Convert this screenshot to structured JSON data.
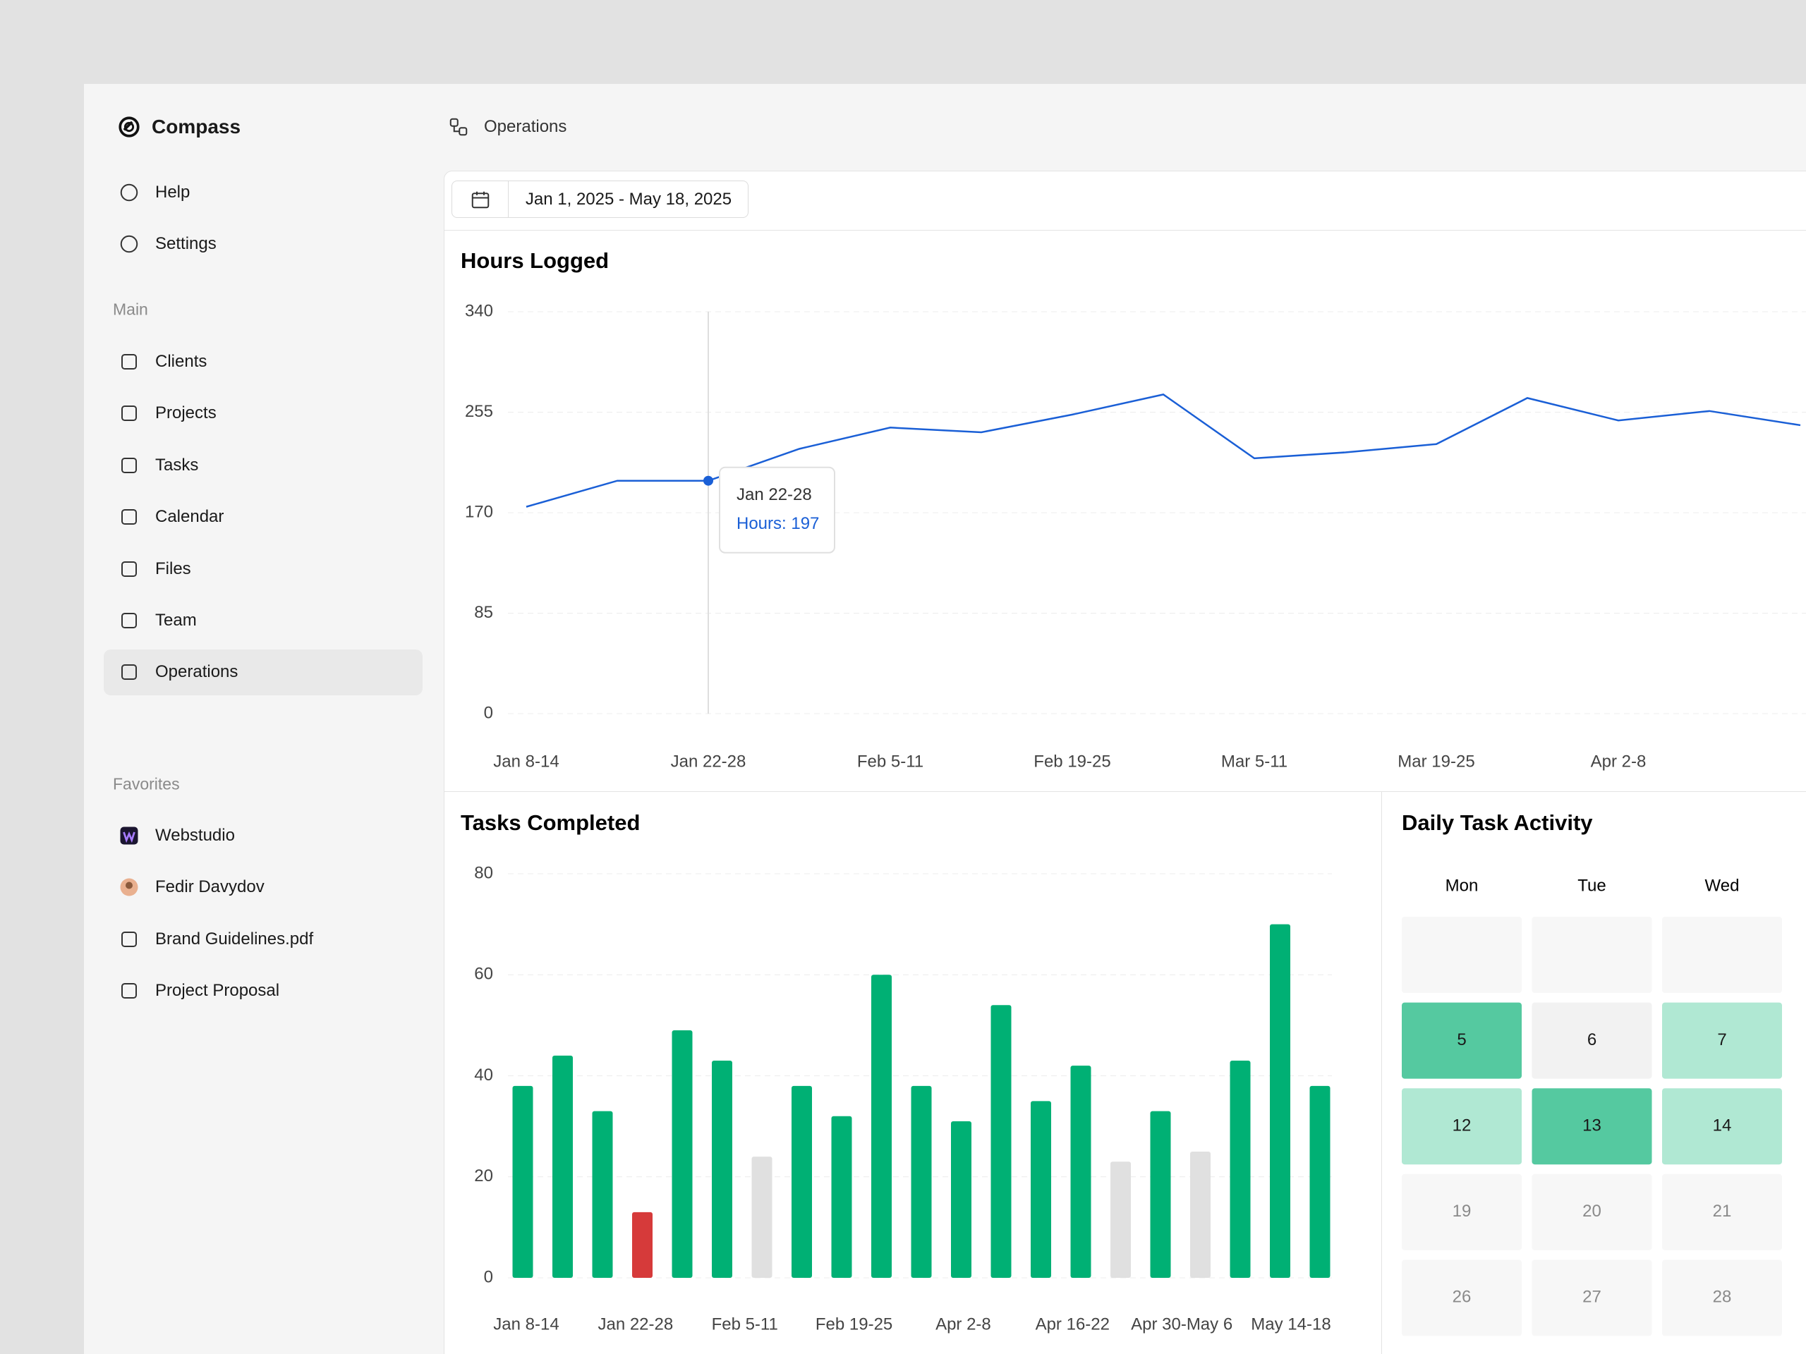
{
  "sidebar": {
    "brand": "Compass",
    "top_items": [
      "Help",
      "Settings"
    ],
    "main_label": "Main",
    "main_items": [
      "Clients",
      "Projects",
      "Tasks",
      "Calendar",
      "Files",
      "Team",
      "Operations"
    ],
    "favorites_label": "Favorites",
    "favorites": [
      "Webstudio",
      "Fedir Davydov",
      "Brand Guidelines.pdf",
      "Project Proposal"
    ]
  },
  "header": {
    "breadcrumb": "Operations",
    "date_range": "Jan 1, 2025 - May 18, 2025"
  },
  "chart_data": [
    {
      "type": "line",
      "title": "Hours Logged",
      "categories": [
        "Jan 8-14",
        null,
        "Jan 22-28",
        null,
        "Feb 5-11",
        null,
        "Feb 19-25",
        null,
        "Mar 5-11",
        null,
        "Mar 19-25",
        null,
        "Apr 2-8",
        null,
        null
      ],
      "series": [
        {
          "color": "#1a5fd6",
          "values": [
            175,
            197,
            197,
            224,
            242,
            238,
            253,
            270,
            216,
            221,
            228,
            267,
            248,
            256,
            244
          ]
        }
      ],
      "ylim": [
        0,
        340
      ],
      "yticks": [
        0,
        85,
        170,
        255,
        340
      ],
      "grid": true,
      "tooltip": {
        "title": "Jan 22-28",
        "text": "Hours: 197"
      }
    },
    {
      "type": "bar",
      "title": "Tasks Completed",
      "values": [
        38,
        44,
        33,
        13,
        49,
        43,
        24,
        38,
        32,
        60,
        38,
        31,
        54,
        35,
        42,
        23,
        33,
        25,
        43,
        70,
        38
      ],
      "colors": [
        "#00b074",
        "#00b074",
        "#00b074",
        "#d63a3a",
        "#00b074",
        "#00b074",
        "#e0e0e0",
        "#00b074",
        "#00b074",
        "#00b074",
        "#00b074",
        "#00b074",
        "#00b074",
        "#00b074",
        "#00b074",
        "#e0e0e0",
        "#00b074",
        "#e0e0e0",
        "#00b074",
        "#00b074",
        "#00b074"
      ],
      "x_labels": [
        "Jan 8-14",
        "Jan 22-28",
        "Feb 5-11",
        "Feb 19-25",
        "Apr 2-8",
        "Apr 16-22",
        "Apr 30-May 6",
        "May 14-18"
      ],
      "ylim": [
        0,
        80
      ],
      "yticks": [
        0,
        20,
        40,
        60,
        80
      ],
      "grid": true
    },
    {
      "type": "heatmap",
      "title": "Daily Task Activity",
      "columns": [
        "Mon",
        "Tue",
        "Wed"
      ],
      "rows": [
        [
          null,
          null,
          null
        ],
        [
          5,
          6,
          7
        ],
        [
          12,
          13,
          14
        ],
        [
          19,
          20,
          21
        ],
        [
          26,
          27,
          28
        ]
      ],
      "colors": [
        [
          "#f7f7f7",
          "#f7f7f7",
          "#f7f7f7"
        ],
        [
          "#55c9a0",
          "#f2f2f2",
          "#b0e8d3"
        ],
        [
          "#b0e8d3",
          "#55c9a0",
          "#b0e8d3"
        ],
        [
          "#f7f7f7",
          "#f7f7f7",
          "#f7f7f7"
        ],
        [
          "#f7f7f7",
          "#f7f7f7",
          "#f7f7f7"
        ]
      ]
    }
  ]
}
